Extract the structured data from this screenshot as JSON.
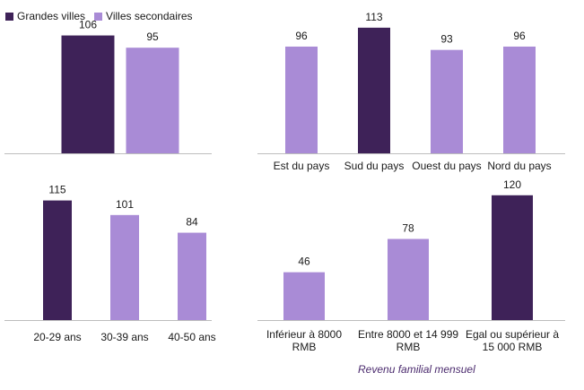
{
  "colors": {
    "major": "#3e2258",
    "secondary": "#a98bd6",
    "axis": "#bdbdbd",
    "note": "#4b2b6e"
  },
  "legend": [
    {
      "label": "Grandes villes",
      "color": "#3e2258"
    },
    {
      "label": "Villes secondaires",
      "color": "#a98bd6"
    }
  ],
  "footnote": "Revenu familial mensuel",
  "chart_data": [
    {
      "type": "bar",
      "categories": [
        "Grandes villes",
        "Villes secondaires"
      ],
      "values": [
        106,
        95
      ],
      "bar_colors": [
        "#3e2258",
        "#a98bd6"
      ],
      "show_category_labels": false,
      "ylim": [
        0,
        125
      ]
    },
    {
      "type": "bar",
      "categories": [
        "Est du pays",
        "Sud du pays",
        "Ouest du pays",
        "Nord du pays"
      ],
      "values": [
        96,
        113,
        93,
        96
      ],
      "bar_colors": [
        "#a98bd6",
        "#3e2258",
        "#a98bd6",
        "#a98bd6"
      ],
      "ylim": [
        0,
        125
      ]
    },
    {
      "type": "bar",
      "categories": [
        "20-29 ans",
        "30-39 ans",
        "40-50 ans"
      ],
      "values": [
        115,
        101,
        84
      ],
      "bar_colors": [
        "#3e2258",
        "#a98bd6",
        "#a98bd6"
      ],
      "ylim": [
        0,
        125
      ]
    },
    {
      "type": "bar",
      "categories": [
        "Inférieur à 8000 RMB",
        "Entre 8000 et 14 999 RMB",
        "Egal ou supérieur à 15 000 RMB"
      ],
      "category_lines": [
        [
          "Inférieur à 8000",
          "RMB"
        ],
        [
          "Entre 8000 et 14 999",
          "RMB"
        ],
        [
          "Egal ou supérieur à",
          "15 000 RMB"
        ]
      ],
      "values": [
        46,
        78,
        120
      ],
      "bar_colors": [
        "#a98bd6",
        "#a98bd6",
        "#3e2258"
      ],
      "xlabel": "Revenu familial mensuel",
      "ylim": [
        0,
        125
      ]
    }
  ]
}
